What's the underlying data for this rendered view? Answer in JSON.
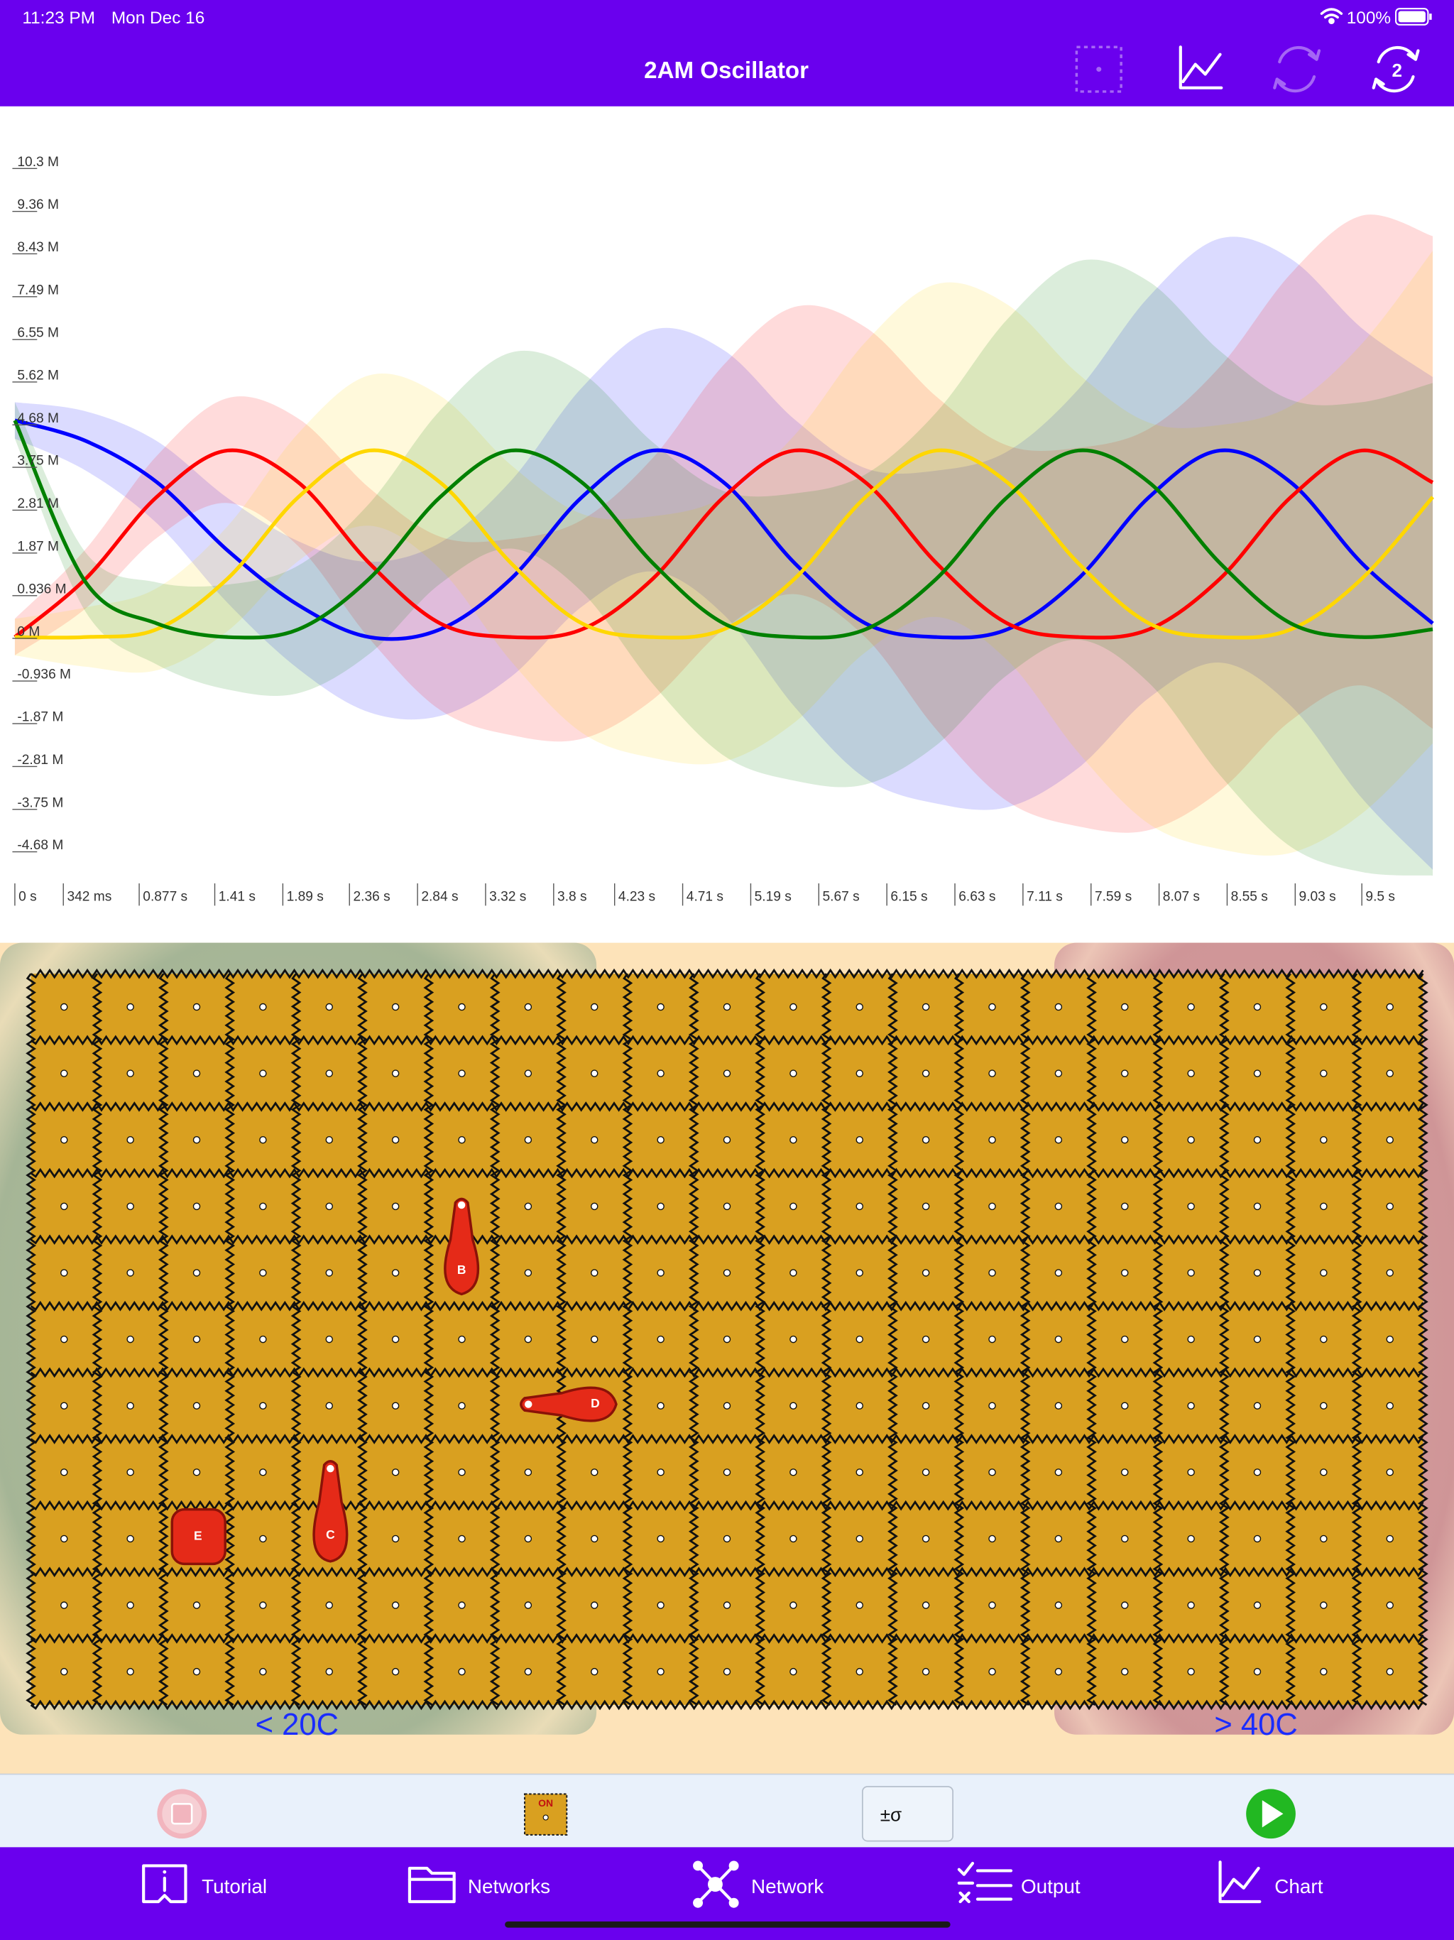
{
  "status_bar": {
    "time": "11:23 PM",
    "date": "Mon Dec 16",
    "battery": "100%"
  },
  "nav_bar": {
    "title": "2AM Oscillator",
    "icon_badge": "2"
  },
  "chart_data": {
    "type": "line",
    "x": [
      0,
      0.5,
      1,
      1.5,
      2,
      2.5,
      3,
      3.5,
      4,
      4.5,
      5,
      5.5,
      6,
      6.5,
      7,
      7.5,
      8,
      8.5,
      9,
      9.5,
      10
    ],
    "series": [
      {
        "color": "#0000ff",
        "values": [
          4.75,
          4.3,
          3.4,
          1.9,
          0.7,
          0,
          0.17,
          1.28,
          3.07,
          4.09,
          3.39,
          1.62,
          0.3,
          0,
          0.17,
          1.28,
          3.07,
          4.09,
          3.39,
          1.62,
          0.3
        ],
        "errors": [
          0.4,
          0.65,
          0.9,
          1.15,
          1.4,
          1.65,
          1.9,
          2.15,
          2.4,
          2.65,
          2.9,
          3.15,
          3.4,
          3.65,
          3.9,
          4.15,
          4.4,
          4.65,
          4.9,
          5.15,
          5.4
        ]
      },
      {
        "color": "#ff0000",
        "values": [
          0,
          1.28,
          3.07,
          4.09,
          3.39,
          1.62,
          0.3,
          0,
          0.17,
          1.28,
          3.07,
          4.09,
          3.39,
          1.62,
          0.3,
          0,
          0.17,
          1.28,
          3.07,
          4.09,
          3.39
        ],
        "errors": [
          0.4,
          0.65,
          0.9,
          1.15,
          1.4,
          1.65,
          1.9,
          2.15,
          2.4,
          2.65,
          2.9,
          3.15,
          3.4,
          3.65,
          3.9,
          4.15,
          4.4,
          4.65,
          4.9,
          5.15,
          5.4
        ]
      },
      {
        "color": "#ffd700",
        "values": [
          0,
          0,
          0.17,
          1.28,
          3.07,
          4.09,
          3.39,
          1.62,
          0.3,
          0,
          0.17,
          1.28,
          3.07,
          4.09,
          3.39,
          1.62,
          0.3,
          0,
          0.17,
          1.28,
          3.07
        ],
        "errors": [
          0.4,
          0.65,
          0.9,
          1.15,
          1.4,
          1.65,
          1.9,
          2.15,
          2.4,
          2.65,
          2.9,
          3.15,
          3.4,
          3.65,
          3.9,
          4.15,
          4.4,
          4.65,
          4.9,
          5.15,
          5.4
        ]
      },
      {
        "color": "#008000",
        "values": [
          4.75,
          1.2,
          0.3,
          0,
          0.17,
          1.28,
          3.07,
          4.09,
          3.39,
          1.62,
          0.3,
          0,
          0.17,
          1.28,
          3.07,
          4.09,
          3.39,
          1.62,
          0.3,
          0,
          0.17
        ],
        "errors": [
          0.4,
          0.65,
          0.9,
          1.15,
          1.4,
          1.65,
          1.9,
          2.15,
          2.4,
          2.65,
          2.9,
          3.15,
          3.4,
          3.65,
          3.9,
          4.15,
          4.4,
          4.65,
          4.9,
          5.15,
          5.4
        ]
      }
    ],
    "xlim": [
      0,
      10.15
    ],
    "ylim": [
      -5.4,
      11.2
    ],
    "xticks": [
      {
        "value": 0,
        "label": "0 s"
      },
      {
        "value": 0.342,
        "label": "342 ms"
      },
      {
        "value": 0.877,
        "label": "0.877 s"
      },
      {
        "value": 1.41,
        "label": "1.41 s"
      },
      {
        "value": 1.89,
        "label": "1.89 s"
      },
      {
        "value": 2.36,
        "label": "2.36 s"
      },
      {
        "value": 2.84,
        "label": "2.84 s"
      },
      {
        "value": 3.32,
        "label": "3.32 s"
      },
      {
        "value": 3.8,
        "label": "3.8 s"
      },
      {
        "value": 4.23,
        "label": "4.23 s"
      },
      {
        "value": 4.71,
        "label": "4.71 s"
      },
      {
        "value": 5.19,
        "label": "5.19 s"
      },
      {
        "value": 5.67,
        "label": "5.67 s"
      },
      {
        "value": 6.15,
        "label": "6.15 s"
      },
      {
        "value": 6.63,
        "label": "6.63 s"
      },
      {
        "value": 7.11,
        "label": "7.11 s"
      },
      {
        "value": 7.59,
        "label": "7.59 s"
      },
      {
        "value": 8.07,
        "label": "8.07 s"
      },
      {
        "value": 8.55,
        "label": "8.55 s"
      },
      {
        "value": 9.03,
        "label": "9.03 s"
      },
      {
        "value": 9.5,
        "label": "9.5 s"
      }
    ],
    "yticks": [
      {
        "value": 10.3,
        "label": "10.3 M"
      },
      {
        "value": 9.36,
        "label": "9.36 M"
      },
      {
        "value": 8.43,
        "label": "8.43 M"
      },
      {
        "value": 7.49,
        "label": "7.49 M"
      },
      {
        "value": 6.55,
        "label": "6.55 M"
      },
      {
        "value": 5.62,
        "label": "5.62 M"
      },
      {
        "value": 4.68,
        "label": "4.68 M"
      },
      {
        "value": 3.75,
        "label": "3.75 M"
      },
      {
        "value": 2.81,
        "label": "2.81 M"
      },
      {
        "value": 1.87,
        "label": "1.87 M"
      },
      {
        "value": 0.936,
        "label": "0.936 M"
      },
      {
        "value": 0,
        "label": "0 M"
      },
      {
        "value": -0.936,
        "label": "-0.936 M"
      },
      {
        "value": -1.87,
        "label": "-1.87 M"
      },
      {
        "value": -2.81,
        "label": "-2.81 M"
      },
      {
        "value": -3.75,
        "label": "-3.75 M"
      },
      {
        "value": -4.68,
        "label": "-4.68 M"
      }
    ],
    "grid": false
  },
  "network": {
    "tokens": [
      "B",
      "D",
      "C",
      "E"
    ],
    "zones": [
      "< 20C",
      "> 40C"
    ]
  },
  "toolbar": {
    "tile_label": "ON",
    "sigma_button": "±σ"
  },
  "tab_bar": {
    "tabs": [
      "Tutorial",
      "Networks",
      "Network",
      "Output",
      "Chart"
    ]
  }
}
